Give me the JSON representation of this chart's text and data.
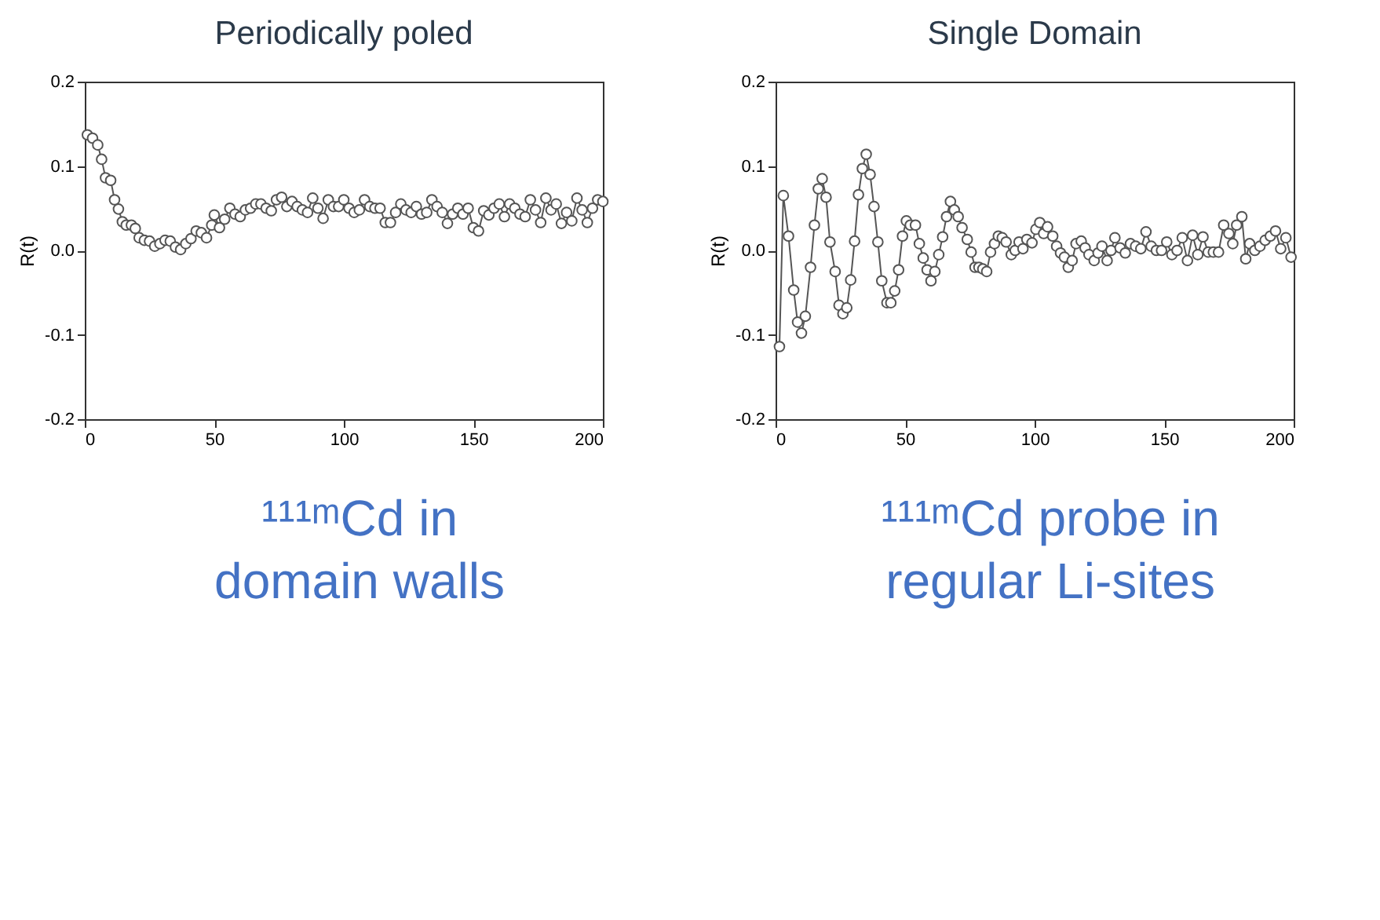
{
  "chart_data": [
    {
      "type": "line",
      "title": "Periodically poled",
      "ylabel": "R(t)",
      "annotations": [
        "¹¹¹ᵐCd in domain walls"
      ],
      "xlim": [
        0,
        200
      ],
      "xticks": [
        0,
        50,
        100,
        150,
        200
      ],
      "ylim": [
        -0.2,
        0.2
      ],
      "yticks": [
        -0.2,
        -0.1,
        {
          "value": 0,
          "label": "0.0"
        },
        0.1,
        0.2
      ],
      "grid": false,
      "marker": "circle",
      "line_style": "solid",
      "series": [
        {
          "color": "#555555",
          "x": [
            1,
            3,
            5,
            6.5,
            8,
            10,
            11.5,
            13,
            14.5,
            16,
            18,
            19.5,
            21,
            23,
            25,
            27,
            29,
            31,
            33,
            35,
            37,
            39,
            41,
            43,
            45,
            47,
            49,
            50,
            52,
            54,
            56,
            58,
            60,
            62,
            64,
            66,
            68,
            70,
            72,
            74,
            76,
            78,
            80,
            82,
            84,
            86,
            88,
            90,
            92,
            94,
            96,
            98,
            100,
            102,
            104,
            106,
            108,
            110,
            112,
            114,
            116,
            118,
            120,
            122,
            124,
            126,
            128,
            130,
            132,
            134,
            136,
            138,
            140,
            142,
            144,
            146,
            148,
            150,
            152,
            154,
            156,
            158,
            160,
            162,
            164,
            166,
            168,
            170,
            172,
            174,
            176,
            178,
            180,
            182,
            184,
            186,
            188,
            190,
            192,
            194,
            196,
            198,
            200
          ],
          "values": [
            0.137,
            0.133,
            0.125,
            0.108,
            0.086,
            0.083,
            0.06,
            0.049,
            0.034,
            0.03,
            0.03,
            0.026,
            0.015,
            0.012,
            0.011,
            0.005,
            0.008,
            0.012,
            0.011,
            0.004,
            0.001,
            0.008,
            0.014,
            0.023,
            0.021,
            0.015,
            0.03,
            0.042,
            0.027,
            0.037,
            0.05,
            0.043,
            0.04,
            0.048,
            0.05,
            0.055,
            0.055,
            0.05,
            0.047,
            0.06,
            0.063,
            0.052,
            0.058,
            0.052,
            0.048,
            0.045,
            0.062,
            0.05,
            0.038,
            0.06,
            0.052,
            0.052,
            0.06,
            0.05,
            0.045,
            0.048,
            0.06,
            0.052,
            0.05,
            0.05,
            0.033,
            0.033,
            0.045,
            0.055,
            0.048,
            0.045,
            0.052,
            0.043,
            0.045,
            0.06,
            0.052,
            0.045,
            0.032,
            0.043,
            0.05,
            0.043,
            0.05,
            0.027,
            0.023,
            0.047,
            0.042,
            0.05,
            0.055,
            0.04,
            0.055,
            0.05,
            0.043,
            0.04,
            0.06,
            0.048,
            0.033,
            0.062,
            0.048,
            0.055,
            0.032,
            0.045,
            0.035,
            0.062,
            0.048,
            0.033,
            0.05,
            0.06,
            0.058
          ]
        }
      ]
    },
    {
      "type": "line",
      "title": "Single Domain",
      "ylabel": "R(t)",
      "annotations": [
        "¹¹¹ᵐCd probe in regular Li-sites"
      ],
      "xlim": [
        0,
        200
      ],
      "xticks": [
        0,
        50,
        100,
        150,
        200
      ],
      "ylim": [
        -0.2,
        0.2
      ],
      "yticks": [
        -0.2,
        -0.1,
        {
          "value": 0,
          "label": "0.0"
        },
        0.1,
        0.2
      ],
      "grid": false,
      "marker": "circle",
      "line_style": "solid",
      "series": [
        {
          "color": "#555555",
          "x": [
            1.5,
            3,
            5,
            7,
            8.5,
            10,
            11.5,
            13.5,
            15,
            16.5,
            18,
            19.5,
            21,
            23,
            24.5,
            26,
            27.5,
            29,
            30.5,
            32,
            33.5,
            35,
            36.5,
            38,
            39.5,
            41,
            43,
            44.5,
            46,
            47.5,
            49,
            50.5,
            52,
            54,
            55.5,
            57,
            58.5,
            60,
            61.5,
            63,
            64.5,
            66,
            67.5,
            69,
            70.5,
            72,
            74,
            75.5,
            77,
            78.5,
            80,
            81.5,
            83,
            84.5,
            86,
            87.5,
            89,
            91,
            92.5,
            94,
            95.5,
            97,
            99,
            100.5,
            102,
            103.5,
            105,
            107,
            108.5,
            110,
            111.5,
            113,
            114.5,
            116,
            118,
            119.5,
            121,
            123,
            124.5,
            126,
            128,
            129.5,
            131,
            133,
            135,
            137,
            139,
            141,
            143,
            145,
            147,
            149,
            151,
            153,
            155,
            157,
            159,
            161,
            163,
            165,
            167,
            169,
            171,
            173,
            175,
            176.5,
            178,
            180,
            181.5,
            183,
            185,
            187,
            189,
            191,
            193,
            195,
            197,
            199
          ],
          "values": [
            -0.114,
            0.065,
            0.017,
            -0.047,
            -0.085,
            -0.098,
            -0.078,
            -0.02,
            0.03,
            0.073,
            0.085,
            0.063,
            0.01,
            -0.025,
            -0.065,
            -0.075,
            -0.068,
            -0.035,
            0.011,
            0.066,
            0.097,
            0.114,
            0.09,
            0.052,
            0.01,
            -0.036,
            -0.062,
            -0.062,
            -0.048,
            -0.023,
            0.017,
            0.035,
            0.03,
            0.03,
            0.008,
            -0.009,
            -0.023,
            -0.036,
            -0.025,
            -0.005,
            0.016,
            0.04,
            0.058,
            0.048,
            0.04,
            0.027,
            0.013,
            -0.002,
            -0.02,
            -0.02,
            -0.022,
            -0.025,
            -0.002,
            0.008,
            0.017,
            0.015,
            0.01,
            -0.005,
            0.0,
            0.01,
            0.002,
            0.013,
            0.009,
            0.025,
            0.033,
            0.02,
            0.028,
            0.017,
            0.005,
            -0.003,
            -0.008,
            -0.02,
            -0.012,
            0.008,
            0.011,
            0.003,
            -0.005,
            -0.012,
            -0.003,
            0.005,
            -0.012,
            0.0,
            0.015,
            0.003,
            -0.003,
            0.008,
            0.005,
            0.002,
            0.022,
            0.005,
            0.0,
            0.0,
            0.01,
            -0.005,
            0.0,
            0.015,
            -0.012,
            0.018,
            -0.005,
            0.016,
            -0.002,
            -0.002,
            -0.002,
            0.03,
            0.02,
            0.008,
            0.03,
            0.04,
            -0.01,
            0.008,
            0.0,
            0.005,
            0.012,
            0.017,
            0.023,
            0.002,
            0.015,
            -0.008
          ]
        }
      ]
    }
  ]
}
